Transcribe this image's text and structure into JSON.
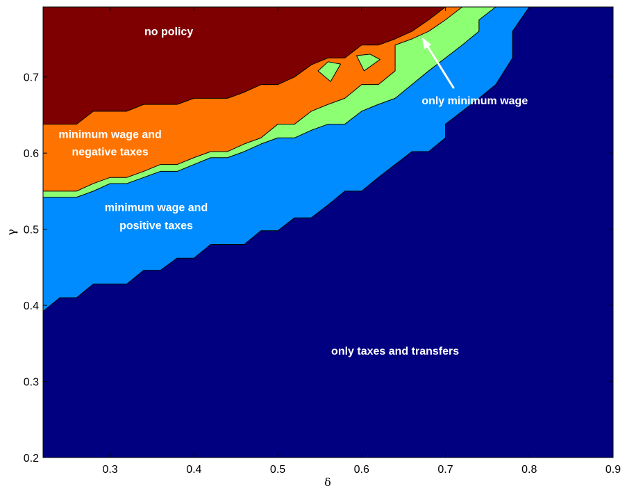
{
  "chart_data": {
    "type": "area",
    "title": "",
    "xlabel": "δ",
    "ylabel": "γ",
    "xlim": [
      0.22,
      0.9
    ],
    "ylim": [
      0.2,
      0.792
    ],
    "xticks": [
      "0.3",
      "0.4",
      "0.5",
      "0.6",
      "0.7",
      "0.8",
      "0.9"
    ],
    "xtick_values": [
      0.3,
      0.4,
      0.5,
      0.6,
      0.7,
      0.8,
      0.9
    ],
    "yticks": [
      "0.2",
      "0.3",
      "0.4",
      "0.5",
      "0.6",
      "0.7"
    ],
    "ytick_values": [
      0.2,
      0.3,
      0.4,
      0.5,
      0.6,
      0.7
    ],
    "colors": {
      "no_policy": "#7f0000",
      "min_wage_negative_taxes": "#ff7300",
      "only_min_wage": "#8cff73",
      "min_wage_positive_taxes": "#008cff",
      "only_taxes_transfers": "#000080"
    },
    "regions": [
      {
        "label": "only taxes and transfers",
        "color_key": "only_taxes_transfers",
        "upper_boundary": [
          [
            0.22,
            0.392
          ],
          [
            0.24,
            0.41
          ],
          [
            0.26,
            0.41
          ],
          [
            0.28,
            0.428
          ],
          [
            0.32,
            0.428
          ],
          [
            0.34,
            0.446
          ],
          [
            0.36,
            0.446
          ],
          [
            0.38,
            0.462
          ],
          [
            0.4,
            0.462
          ],
          [
            0.42,
            0.48
          ],
          [
            0.46,
            0.48
          ],
          [
            0.48,
            0.498
          ],
          [
            0.5,
            0.498
          ],
          [
            0.52,
            0.515
          ],
          [
            0.54,
            0.515
          ],
          [
            0.56,
            0.532
          ],
          [
            0.58,
            0.55
          ],
          [
            0.6,
            0.55
          ],
          [
            0.62,
            0.568
          ],
          [
            0.64,
            0.585
          ],
          [
            0.66,
            0.602
          ],
          [
            0.68,
            0.602
          ],
          [
            0.7,
            0.62
          ],
          [
            0.7,
            0.638
          ],
          [
            0.72,
            0.655
          ],
          [
            0.74,
            0.672
          ],
          [
            0.76,
            0.69
          ],
          [
            0.78,
            0.725
          ],
          [
            0.78,
            0.76
          ],
          [
            0.8,
            0.792
          ]
        ]
      },
      {
        "label": "minimum wage and positive taxes",
        "color_key": "min_wage_positive_taxes",
        "upper_boundary": [
          [
            0.22,
            0.542
          ],
          [
            0.26,
            0.542
          ],
          [
            0.28,
            0.55
          ],
          [
            0.3,
            0.56
          ],
          [
            0.32,
            0.56
          ],
          [
            0.34,
            0.568
          ],
          [
            0.36,
            0.576
          ],
          [
            0.38,
            0.576
          ],
          [
            0.4,
            0.585
          ],
          [
            0.42,
            0.594
          ],
          [
            0.44,
            0.594
          ],
          [
            0.46,
            0.602
          ],
          [
            0.48,
            0.612
          ],
          [
            0.5,
            0.62
          ],
          [
            0.52,
            0.62
          ],
          [
            0.54,
            0.63
          ],
          [
            0.56,
            0.638
          ],
          [
            0.58,
            0.638
          ],
          [
            0.6,
            0.655
          ],
          [
            0.62,
            0.664
          ],
          [
            0.64,
            0.672
          ],
          [
            0.66,
            0.69
          ],
          [
            0.68,
            0.708
          ],
          [
            0.7,
            0.725
          ],
          [
            0.72,
            0.742
          ],
          [
            0.74,
            0.76
          ],
          [
            0.74,
            0.775
          ],
          [
            0.76,
            0.792
          ]
        ]
      },
      {
        "label": "only minimum wage",
        "color_key": "only_min_wage",
        "upper_boundary": [
          [
            0.22,
            0.55
          ],
          [
            0.26,
            0.55
          ],
          [
            0.28,
            0.56
          ],
          [
            0.3,
            0.568
          ],
          [
            0.32,
            0.568
          ],
          [
            0.34,
            0.576
          ],
          [
            0.36,
            0.585
          ],
          [
            0.38,
            0.585
          ],
          [
            0.4,
            0.594
          ],
          [
            0.42,
            0.602
          ],
          [
            0.44,
            0.602
          ],
          [
            0.46,
            0.612
          ],
          [
            0.48,
            0.62
          ],
          [
            0.5,
            0.638
          ],
          [
            0.52,
            0.638
          ],
          [
            0.54,
            0.655
          ],
          [
            0.56,
            0.664
          ],
          [
            0.58,
            0.672
          ],
          [
            0.6,
            0.69
          ],
          [
            0.62,
            0.69
          ],
          [
            0.64,
            0.708
          ],
          [
            0.64,
            0.742
          ],
          [
            0.66,
            0.75
          ],
          [
            0.68,
            0.76
          ],
          [
            0.7,
            0.775
          ],
          [
            0.72,
            0.792
          ]
        ]
      },
      {
        "label": "minimum wage and negative taxes",
        "color_key": "min_wage_negative_taxes",
        "upper_boundary": [
          [
            0.22,
            0.638
          ],
          [
            0.26,
            0.638
          ],
          [
            0.28,
            0.655
          ],
          [
            0.32,
            0.655
          ],
          [
            0.34,
            0.664
          ],
          [
            0.38,
            0.664
          ],
          [
            0.4,
            0.672
          ],
          [
            0.44,
            0.672
          ],
          [
            0.46,
            0.68
          ],
          [
            0.48,
            0.69
          ],
          [
            0.5,
            0.69
          ],
          [
            0.52,
            0.7
          ],
          [
            0.54,
            0.716
          ],
          [
            0.56,
            0.725
          ],
          [
            0.58,
            0.725
          ],
          [
            0.6,
            0.742
          ],
          [
            0.62,
            0.742
          ],
          [
            0.64,
            0.75
          ],
          [
            0.66,
            0.76
          ],
          [
            0.68,
            0.775
          ],
          [
            0.7,
            0.792
          ]
        ]
      },
      {
        "label": "no policy",
        "color_key": "no_policy",
        "upper_boundary": [
          [
            0.22,
            0.792
          ],
          [
            0.9,
            0.792
          ]
        ]
      }
    ],
    "islands": [
      {
        "color_key": "only_min_wage",
        "points": [
          [
            0.548,
            0.708
          ],
          [
            0.56,
            0.72
          ],
          [
            0.575,
            0.717
          ],
          [
            0.563,
            0.694
          ]
        ]
      },
      {
        "color_key": "only_min_wage",
        "points": [
          [
            0.594,
            0.728
          ],
          [
            0.61,
            0.73
          ],
          [
            0.622,
            0.723
          ],
          [
            0.603,
            0.708
          ]
        ]
      }
    ],
    "annotations": [
      {
        "text": "no policy",
        "x": 0.37,
        "y": 0.755
      },
      {
        "text": "minimum wage and",
        "x": 0.3,
        "y": 0.62
      },
      {
        "text": "negative taxes",
        "x": 0.3,
        "y": 0.597
      },
      {
        "text": "minimum wage and",
        "x": 0.355,
        "y": 0.524
      },
      {
        "text": "positive taxes",
        "x": 0.355,
        "y": 0.5
      },
      {
        "text": "only minimum wage",
        "x": 0.735,
        "y": 0.664
      },
      {
        "text": "only taxes and transfers",
        "x": 0.64,
        "y": 0.335
      }
    ],
    "arrow": {
      "from": [
        0.71,
        0.685
      ],
      "to": [
        0.672,
        0.752
      ]
    },
    "grid": false,
    "legend": "none"
  }
}
